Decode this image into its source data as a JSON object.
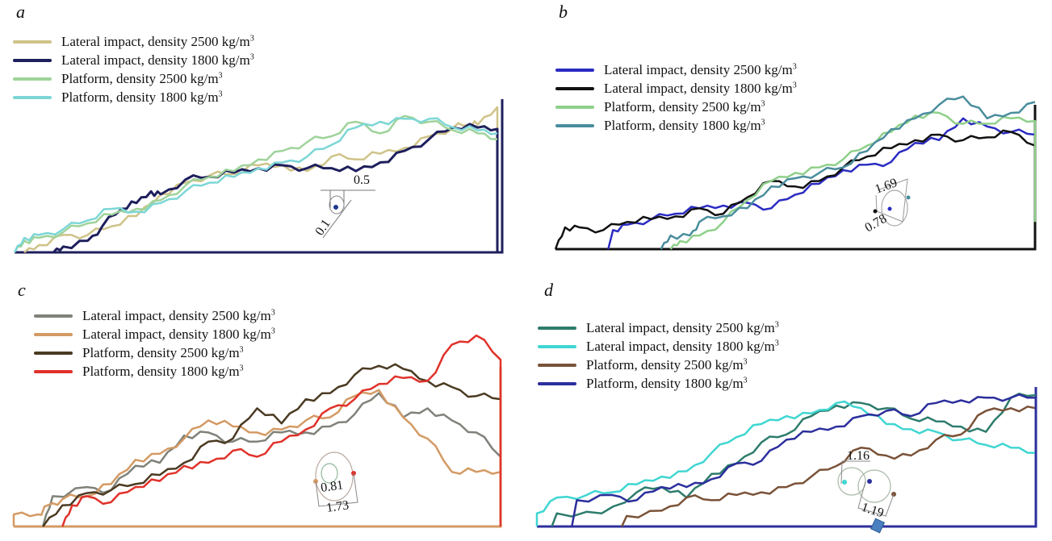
{
  "chart_data": [
    {
      "panel": "a",
      "type": "line",
      "title": "a",
      "xlabel": "",
      "ylabel": "",
      "xlim": [
        0,
        1
      ],
      "ylim": [
        0,
        1
      ],
      "grid": false,
      "legend_position": "top-left",
      "series": [
        {
          "name": "Lateral impact, density 2500 kg/m3",
          "color": "#cfc389",
          "x": [
            0.02,
            0.05,
            0.1,
            0.15,
            0.2,
            0.25,
            0.3,
            0.35,
            0.4,
            0.45,
            0.5,
            0.55,
            0.6,
            0.65,
            0.7,
            0.75,
            0.8,
            0.85,
            0.9,
            0.93,
            0.95,
            0.99,
            0.99
          ],
          "y": [
            0.0,
            0.05,
            0.12,
            0.12,
            0.18,
            0.25,
            0.4,
            0.48,
            0.53,
            0.54,
            0.6,
            0.6,
            0.56,
            0.66,
            0.64,
            0.68,
            0.72,
            0.8,
            0.86,
            0.88,
            0.88,
            1.0,
            0.8
          ]
        },
        {
          "name": "Lateral impact, density 1800 kg/m3",
          "color": "#1e1f5c",
          "x": [
            0.08,
            0.1,
            0.15,
            0.18,
            0.22,
            0.25,
            0.28,
            0.3,
            0.35,
            0.4,
            0.45,
            0.5,
            0.55,
            0.6,
            0.65,
            0.7,
            0.75,
            0.8,
            0.85,
            0.9,
            0.95,
            0.99,
            0.99
          ],
          "y": [
            0.0,
            0.04,
            0.08,
            0.18,
            0.3,
            0.34,
            0.42,
            0.4,
            0.5,
            0.52,
            0.55,
            0.58,
            0.6,
            0.58,
            0.58,
            0.56,
            0.62,
            0.7,
            0.78,
            0.86,
            0.86,
            0.85,
            0.0
          ]
        },
        {
          "name": "Platform, density 2500 kg/m3",
          "color": "#9fd39a",
          "x": [
            0.0,
            0.02,
            0.05,
            0.1,
            0.15,
            0.2,
            0.25,
            0.3,
            0.35,
            0.4,
            0.45,
            0.5,
            0.55,
            0.6,
            0.65,
            0.7,
            0.75,
            0.8,
            0.85,
            0.9,
            0.95,
            0.99
          ],
          "y": [
            0.0,
            0.08,
            0.1,
            0.14,
            0.2,
            0.26,
            0.3,
            0.36,
            0.46,
            0.52,
            0.56,
            0.64,
            0.7,
            0.76,
            0.8,
            0.9,
            0.82,
            0.94,
            0.9,
            0.84,
            0.82,
            0.78
          ]
        },
        {
          "name": "Platform, density 1800 kg/m3",
          "color": "#7dd6d6",
          "x": [
            0.0,
            0.02,
            0.05,
            0.1,
            0.15,
            0.2,
            0.25,
            0.3,
            0.35,
            0.4,
            0.45,
            0.5,
            0.55,
            0.6,
            0.65,
            0.7,
            0.75,
            0.8,
            0.85,
            0.9,
            0.95,
            0.99
          ],
          "y": [
            0.0,
            0.1,
            0.12,
            0.16,
            0.22,
            0.3,
            0.28,
            0.34,
            0.42,
            0.48,
            0.52,
            0.58,
            0.62,
            0.66,
            0.74,
            0.86,
            0.9,
            0.92,
            0.92,
            0.86,
            0.84,
            0.82
          ]
        }
      ],
      "annotations": [
        {
          "text": "0.5",
          "kind": "dimension-horizontal"
        },
        {
          "text": "0.1",
          "kind": "dimension-diagonal"
        }
      ]
    },
    {
      "panel": "b",
      "type": "line",
      "title": "b",
      "xlabel": "",
      "ylabel": "",
      "xlim": [
        0,
        1
      ],
      "ylim": [
        0,
        1
      ],
      "grid": false,
      "legend_position": "top-left",
      "series": [
        {
          "name": "Lateral impact, density 2500 kg/m3",
          "color": "#2b2bc2",
          "x": [
            0.11,
            0.12,
            0.15,
            0.2,
            0.25,
            0.3,
            0.35,
            0.4,
            0.45,
            0.5,
            0.55,
            0.6,
            0.65,
            0.7,
            0.75,
            0.8,
            0.85,
            0.9,
            0.95,
            1.0
          ],
          "y": [
            0.0,
            0.14,
            0.18,
            0.22,
            0.26,
            0.3,
            0.32,
            0.34,
            0.3,
            0.4,
            0.48,
            0.58,
            0.62,
            0.64,
            0.78,
            0.8,
            0.96,
            0.9,
            0.86,
            0.84
          ]
        },
        {
          "name": "Lateral impact, density 1800 kg/m3",
          "color": "#111111",
          "x": [
            0.0,
            0.02,
            0.05,
            0.1,
            0.15,
            0.2,
            0.25,
            0.3,
            0.35,
            0.4,
            0.45,
            0.5,
            0.55,
            0.6,
            0.65,
            0.7,
            0.75,
            0.8,
            0.85,
            0.9,
            0.95,
            1.0,
            1.0
          ],
          "y": [
            0.0,
            0.16,
            0.16,
            0.14,
            0.2,
            0.22,
            0.24,
            0.3,
            0.26,
            0.38,
            0.5,
            0.46,
            0.5,
            0.6,
            0.68,
            0.74,
            0.8,
            0.84,
            0.8,
            0.82,
            0.86,
            0.76,
            0.0
          ]
        },
        {
          "name": "Platform, density 2500 kg/m3",
          "color": "#8fd08a",
          "x": [
            0.24,
            0.26,
            0.3,
            0.35,
            0.4,
            0.45,
            0.5,
            0.55,
            0.6,
            0.65,
            0.7,
            0.75,
            0.8,
            0.85,
            0.9,
            0.95,
            1.0,
            1.0
          ],
          "y": [
            0.0,
            0.06,
            0.1,
            0.2,
            0.36,
            0.5,
            0.56,
            0.6,
            0.66,
            0.76,
            0.86,
            0.98,
            1.0,
            0.92,
            0.92,
            0.96,
            0.94,
            0.2
          ]
        },
        {
          "name": "Platform, density 1800 kg/m3",
          "color": "#4a8d9d",
          "x": [
            0.22,
            0.24,
            0.28,
            0.3,
            0.35,
            0.4,
            0.45,
            0.5,
            0.55,
            0.6,
            0.65,
            0.7,
            0.75,
            0.8,
            0.85,
            0.9,
            0.95,
            1.0
          ],
          "y": [
            0.0,
            0.1,
            0.1,
            0.2,
            0.24,
            0.3,
            0.46,
            0.52,
            0.56,
            0.6,
            0.72,
            0.88,
            0.96,
            1.06,
            1.12,
            0.96,
            1.0,
            1.08
          ]
        }
      ],
      "annotations": [
        {
          "text": "1.69",
          "kind": "dimension-diagonal"
        },
        {
          "text": "0.78",
          "kind": "dimension-diagonal"
        }
      ]
    },
    {
      "panel": "c",
      "type": "line",
      "title": "c",
      "xlabel": "",
      "ylabel": "",
      "xlim": [
        0,
        1
      ],
      "ylim": [
        0,
        1
      ],
      "grid": false,
      "legend_position": "top-left",
      "series": [
        {
          "name": "Lateral impact, density 2500 kg/m3",
          "color": "#7f8279",
          "x": [
            0.06,
            0.08,
            0.15,
            0.2,
            0.25,
            0.3,
            0.35,
            0.4,
            0.45,
            0.5,
            0.55,
            0.6,
            0.65,
            0.7,
            0.75,
            0.8,
            0.85,
            0.9,
            0.95,
            1.0
          ],
          "y": [
            0.0,
            0.2,
            0.26,
            0.24,
            0.4,
            0.42,
            0.6,
            0.62,
            0.56,
            0.56,
            0.62,
            0.62,
            0.66,
            0.74,
            0.88,
            0.72,
            0.78,
            0.7,
            0.62,
            0.46
          ]
        },
        {
          "name": "Lateral impact, density 1800 kg/m3",
          "color": "#d49a64",
          "x": [
            0.0,
            0.05,
            0.07,
            0.1,
            0.15,
            0.2,
            0.25,
            0.3,
            0.35,
            0.4,
            0.45,
            0.5,
            0.55,
            0.6,
            0.65,
            0.7,
            0.75,
            0.8,
            0.85,
            0.9,
            0.95,
            1.0,
            1.0
          ],
          "y": [
            0.08,
            0.08,
            0.14,
            0.18,
            0.2,
            0.28,
            0.44,
            0.48,
            0.58,
            0.7,
            0.66,
            0.62,
            0.64,
            0.7,
            0.72,
            0.86,
            0.9,
            0.72,
            0.58,
            0.36,
            0.36,
            0.36,
            0.0
          ]
        },
        {
          "name": "Platform, density 2500 kg/m3",
          "color": "#4b3a22",
          "x": [
            0.06,
            0.1,
            0.15,
            0.2,
            0.25,
            0.3,
            0.35,
            0.4,
            0.45,
            0.5,
            0.55,
            0.6,
            0.65,
            0.7,
            0.75,
            0.8,
            0.85,
            0.9,
            0.95,
            1.0
          ],
          "y": [
            0.0,
            0.14,
            0.22,
            0.24,
            0.28,
            0.34,
            0.42,
            0.56,
            0.58,
            0.78,
            0.68,
            0.84,
            0.88,
            1.0,
            1.06,
            1.04,
            0.96,
            0.92,
            0.86,
            0.84
          ]
        },
        {
          "name": "Platform, density 1800 kg/m3",
          "color": "#e0322a",
          "x": [
            0.1,
            0.12,
            0.15,
            0.2,
            0.25,
            0.3,
            0.35,
            0.4,
            0.45,
            0.5,
            0.55,
            0.6,
            0.65,
            0.7,
            0.75,
            0.8,
            0.85,
            0.9,
            0.95,
            1.0,
            1.0
          ],
          "y": [
            0.0,
            0.14,
            0.2,
            0.16,
            0.26,
            0.3,
            0.4,
            0.42,
            0.5,
            0.46,
            0.56,
            0.64,
            0.78,
            0.84,
            0.94,
            0.98,
            0.96,
            1.2,
            1.26,
            1.1,
            0.0
          ]
        }
      ],
      "annotations": [
        {
          "text": "0.81",
          "kind": "dimension-horizontal"
        },
        {
          "text": "1.73",
          "kind": "dimension-horizontal"
        }
      ]
    },
    {
      "panel": "d",
      "type": "line",
      "title": "d",
      "xlabel": "",
      "ylabel": "",
      "xlim": [
        0,
        1
      ],
      "ylim": [
        0,
        1
      ],
      "grid": false,
      "legend_position": "top-left",
      "series": [
        {
          "name": "Lateral impact, density 2500 kg/m3",
          "color": "#2e7c6c",
          "x": [
            0.03,
            0.04,
            0.13,
            0.2,
            0.25,
            0.3,
            0.35,
            0.4,
            0.45,
            0.5,
            0.55,
            0.6,
            0.65,
            0.7,
            0.75,
            0.8,
            0.85,
            0.9,
            0.95,
            1.0
          ],
          "y": [
            0.0,
            0.1,
            0.1,
            0.26,
            0.3,
            0.22,
            0.4,
            0.48,
            0.64,
            0.7,
            0.84,
            0.92,
            0.94,
            0.9,
            0.82,
            0.8,
            0.76,
            0.72,
            0.98,
            1.0
          ]
        },
        {
          "name": "Lateral impact, density 1800 kg/m3",
          "color": "#3fd6d2",
          "x": [
            0.0,
            0.0,
            0.04,
            0.1,
            0.15,
            0.2,
            0.25,
            0.3,
            0.35,
            0.4,
            0.45,
            0.5,
            0.55,
            0.6,
            0.65,
            0.7,
            0.75,
            0.8,
            0.85,
            0.9,
            0.95,
            1.0
          ],
          "y": [
            0.0,
            0.1,
            0.22,
            0.24,
            0.26,
            0.32,
            0.38,
            0.42,
            0.56,
            0.68,
            0.78,
            0.84,
            0.86,
            0.94,
            0.9,
            0.78,
            0.74,
            0.72,
            0.66,
            0.62,
            0.6,
            0.56
          ]
        },
        {
          "name": "Platform, density 2500 kg/m3",
          "color": "#7a5238",
          "x": [
            0.17,
            0.18,
            0.25,
            0.3,
            0.35,
            0.4,
            0.45,
            0.5,
            0.55,
            0.6,
            0.65,
            0.7,
            0.75,
            0.8,
            0.85,
            0.9,
            0.95,
            1.0
          ],
          "y": [
            0.0,
            0.08,
            0.12,
            0.22,
            0.2,
            0.24,
            0.26,
            0.3,
            0.38,
            0.46,
            0.6,
            0.54,
            0.54,
            0.66,
            0.7,
            0.88,
            0.9,
            0.9
          ]
        },
        {
          "name": "Platform, density 1800 kg/m3",
          "color": "#2c2f9c",
          "x": [
            0.07,
            0.08,
            0.15,
            0.2,
            0.25,
            0.3,
            0.35,
            0.4,
            0.45,
            0.5,
            0.55,
            0.6,
            0.65,
            0.7,
            0.75,
            0.8,
            0.85,
            0.9,
            0.95,
            1.0,
            1.0
          ],
          "y": [
            0.0,
            0.2,
            0.24,
            0.2,
            0.3,
            0.3,
            0.36,
            0.48,
            0.5,
            0.66,
            0.72,
            0.76,
            0.84,
            0.88,
            0.84,
            0.94,
            0.96,
            0.98,
            0.98,
            0.98,
            0.0
          ]
        }
      ],
      "annotations": [
        {
          "text": "1.16",
          "kind": "dimension-horizontal"
        },
        {
          "text": "1.19",
          "kind": "dimension-diagonal"
        }
      ]
    }
  ]
}
